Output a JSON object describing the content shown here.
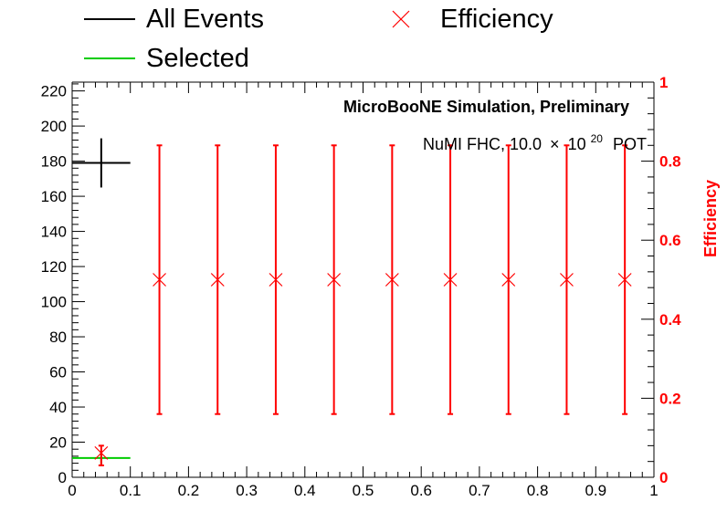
{
  "chart_data": {
    "type": "scatter",
    "title": "",
    "annotations": {
      "header": "MicroBooNE Simulation, Preliminary",
      "pot_prefix": "NuMI FHC, 10.0",
      "pot_times": "×",
      "pot_base": "10",
      "pot_exp": "20",
      "pot_suffix": "POT"
    },
    "xlabel": "",
    "ylabel": "",
    "y2label": "Efficiency",
    "xlim": [
      0,
      1
    ],
    "ylim": [
      0,
      225
    ],
    "y2lim": [
      0,
      1
    ],
    "x_ticks": [
      "0",
      "0.1",
      "0.2",
      "0.3",
      "0.4",
      "0.5",
      "0.6",
      "0.7",
      "0.8",
      "0.9",
      "1"
    ],
    "y_ticks": [
      "0",
      "20",
      "40",
      "60",
      "80",
      "100",
      "120",
      "140",
      "160",
      "180",
      "200",
      "220"
    ],
    "y2_ticks": [
      "0",
      "0.2",
      "0.4",
      "0.6",
      "0.8",
      "1"
    ],
    "grid": false,
    "legend_position": "top",
    "series": [
      {
        "name": "All Events",
        "color": "#000000",
        "axis": "left",
        "style": "histogram-cross",
        "points": [
          {
            "x": 0.05,
            "xerr": 0.05,
            "y": 179,
            "yerr": 14
          }
        ]
      },
      {
        "name": "Selected",
        "color": "#00cc00",
        "axis": "left",
        "style": "histogram-cross",
        "points": [
          {
            "x": 0.05,
            "xerr": 0.05,
            "y": 11,
            "yerr": 4
          }
        ]
      },
      {
        "name": "Efficiency",
        "color": "#ff0000",
        "axis": "right",
        "style": "marker-x",
        "points": [
          {
            "x": 0.05,
            "y": 0.0615,
            "ylo": 0.03,
            "yhi": 0.08
          },
          {
            "x": 0.15,
            "y": 0.5,
            "ylo": 0.16,
            "yhi": 0.84
          },
          {
            "x": 0.25,
            "y": 0.5,
            "ylo": 0.16,
            "yhi": 0.84
          },
          {
            "x": 0.35,
            "y": 0.5,
            "ylo": 0.16,
            "yhi": 0.84
          },
          {
            "x": 0.45,
            "y": 0.5,
            "ylo": 0.16,
            "yhi": 0.84
          },
          {
            "x": 0.55,
            "y": 0.5,
            "ylo": 0.16,
            "yhi": 0.84
          },
          {
            "x": 0.65,
            "y": 0.5,
            "ylo": 0.16,
            "yhi": 0.84
          },
          {
            "x": 0.75,
            "y": 0.5,
            "ylo": 0.16,
            "yhi": 0.84
          },
          {
            "x": 0.85,
            "y": 0.5,
            "ylo": 0.16,
            "yhi": 0.84
          },
          {
            "x": 0.95,
            "y": 0.5,
            "ylo": 0.16,
            "yhi": 0.84
          }
        ]
      }
    ]
  }
}
